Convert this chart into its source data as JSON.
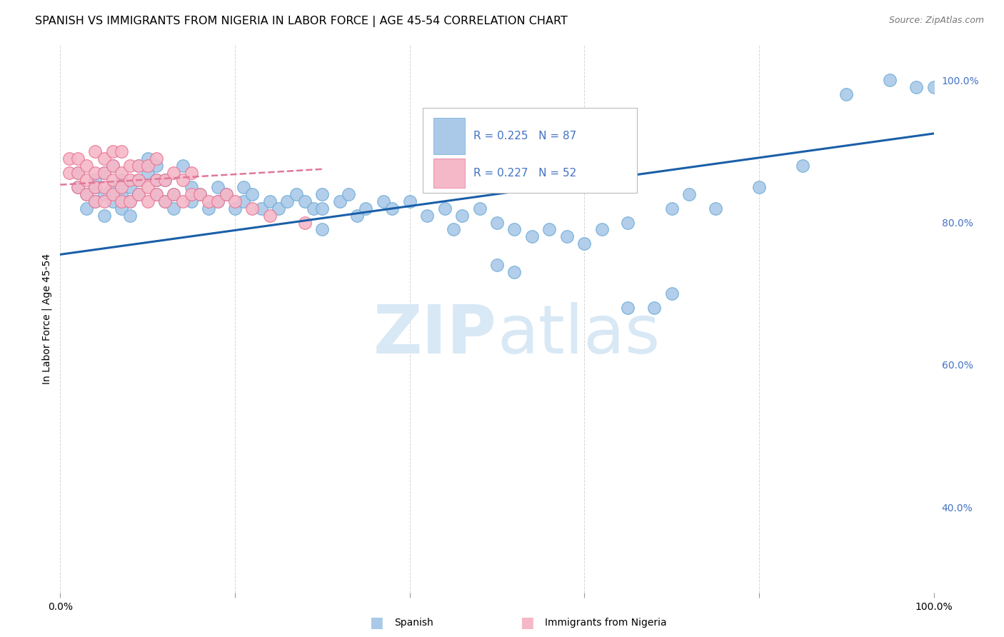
{
  "title": "SPANISH VS IMMIGRANTS FROM NIGERIA IN LABOR FORCE | AGE 45-54 CORRELATION CHART",
  "source": "Source: ZipAtlas.com",
  "ylabel": "In Labor Force | Age 45-54",
  "xlim": [
    0.0,
    1.0
  ],
  "ylim": [
    0.28,
    1.05
  ],
  "legend_blue_R": "R = 0.225",
  "legend_blue_N": "N = 87",
  "legend_pink_R": "R = 0.227",
  "legend_pink_N": "N = 52",
  "legend_label_blue": "Spanish",
  "legend_label_pink": "Immigrants from Nigeria",
  "blue_color": "#aac9e8",
  "blue_edge_color": "#6aaad4",
  "pink_color": "#f5b8c8",
  "pink_edge_color": "#e87090",
  "blue_line_color": "#1a5fa8",
  "pink_line_color": "#e07898",
  "text_color": "#4472c4",
  "watermark_color": "#d8e8f5",
  "background_color": "#ffffff",
  "grid_color": "#cccccc",
  "title_fontsize": 11.5,
  "source_fontsize": 9,
  "axis_label_fontsize": 10,
  "blue_scatter_x": [
    0.02,
    0.02,
    0.03,
    0.03,
    0.04,
    0.04,
    0.04,
    0.05,
    0.05,
    0.05,
    0.06,
    0.06,
    0.06,
    0.07,
    0.07,
    0.07,
    0.08,
    0.08,
    0.08,
    0.09,
    0.09,
    0.09,
    0.1,
    0.1,
    0.11,
    0.11,
    0.11,
    0.12,
    0.12,
    0.13,
    0.13,
    0.14,
    0.15,
    0.15,
    0.16,
    0.17,
    0.18,
    0.18,
    0.19,
    0.2,
    0.21,
    0.21,
    0.22,
    0.23,
    0.24,
    0.25,
    0.26,
    0.27,
    0.28,
    0.29,
    0.3,
    0.3,
    0.32,
    0.33,
    0.34,
    0.35,
    0.37,
    0.38,
    0.4,
    0.42,
    0.44,
    0.45,
    0.46,
    0.48,
    0.5,
    0.52,
    0.54,
    0.56,
    0.58,
    0.6,
    0.62,
    0.65,
    0.7,
    0.72,
    0.75,
    0.8,
    0.85,
    0.9,
    0.95,
    0.98,
    1.0,
    0.5,
    0.52,
    0.65,
    0.68,
    0.7,
    0.3
  ],
  "blue_scatter_y": [
    0.87,
    0.85,
    0.84,
    0.82,
    0.86,
    0.83,
    0.85,
    0.81,
    0.84,
    0.87,
    0.83,
    0.85,
    0.88,
    0.82,
    0.84,
    0.86,
    0.81,
    0.83,
    0.85,
    0.84,
    0.86,
    0.88,
    0.87,
    0.89,
    0.84,
    0.86,
    0.88,
    0.83,
    0.86,
    0.84,
    0.82,
    0.88,
    0.83,
    0.85,
    0.84,
    0.82,
    0.85,
    0.83,
    0.84,
    0.82,
    0.85,
    0.83,
    0.84,
    0.82,
    0.83,
    0.82,
    0.83,
    0.84,
    0.83,
    0.82,
    0.84,
    0.82,
    0.83,
    0.84,
    0.81,
    0.82,
    0.83,
    0.82,
    0.83,
    0.81,
    0.82,
    0.79,
    0.81,
    0.82,
    0.8,
    0.79,
    0.78,
    0.79,
    0.78,
    0.77,
    0.79,
    0.8,
    0.82,
    0.84,
    0.82,
    0.85,
    0.88,
    0.98,
    1.0,
    0.99,
    0.99,
    0.74,
    0.73,
    0.68,
    0.68,
    0.7,
    0.79
  ],
  "pink_scatter_x": [
    0.01,
    0.01,
    0.02,
    0.02,
    0.02,
    0.03,
    0.03,
    0.03,
    0.04,
    0.04,
    0.04,
    0.04,
    0.05,
    0.05,
    0.05,
    0.05,
    0.06,
    0.06,
    0.06,
    0.06,
    0.07,
    0.07,
    0.07,
    0.07,
    0.08,
    0.08,
    0.08,
    0.09,
    0.09,
    0.09,
    0.1,
    0.1,
    0.1,
    0.11,
    0.11,
    0.11,
    0.12,
    0.12,
    0.13,
    0.13,
    0.14,
    0.14,
    0.15,
    0.15,
    0.16,
    0.17,
    0.18,
    0.19,
    0.2,
    0.22,
    0.24,
    0.28
  ],
  "pink_scatter_y": [
    0.87,
    0.89,
    0.85,
    0.87,
    0.89,
    0.84,
    0.86,
    0.88,
    0.83,
    0.85,
    0.87,
    0.9,
    0.83,
    0.85,
    0.87,
    0.89,
    0.84,
    0.86,
    0.88,
    0.9,
    0.83,
    0.85,
    0.87,
    0.9,
    0.83,
    0.86,
    0.88,
    0.84,
    0.86,
    0.88,
    0.83,
    0.85,
    0.88,
    0.84,
    0.86,
    0.89,
    0.83,
    0.86,
    0.84,
    0.87,
    0.83,
    0.86,
    0.84,
    0.87,
    0.84,
    0.83,
    0.83,
    0.84,
    0.83,
    0.82,
    0.81,
    0.8
  ],
  "blue_line_x": [
    0.0,
    1.0
  ],
  "blue_line_y": [
    0.755,
    0.925
  ],
  "pink_line_x": [
    0.0,
    0.3
  ],
  "pink_line_y": [
    0.853,
    0.875
  ]
}
